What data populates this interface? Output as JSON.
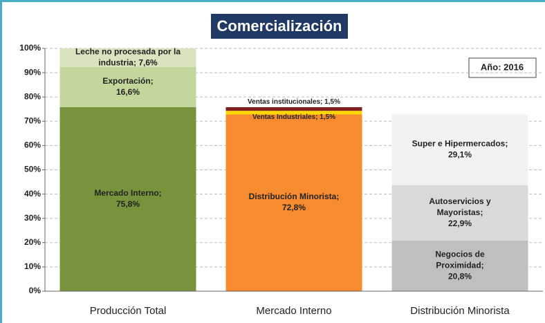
{
  "chart_data": {
    "type": "stacked_bar",
    "title": "Comercialización",
    "annotation": "Año: 2016",
    "categories": [
      "Producción Total",
      "Mercado Interno",
      "Distribución Minorista"
    ],
    "ylim": [
      0,
      100
    ],
    "yticks": [
      {
        "value": 0,
        "label": "0%"
      },
      {
        "value": 10,
        "label": "10%"
      },
      {
        "value": 20,
        "label": "20%"
      },
      {
        "value": 30,
        "label": "30%"
      },
      {
        "value": 40,
        "label": "40%"
      },
      {
        "value": 50,
        "label": "50%"
      },
      {
        "value": 60,
        "label": "60%"
      },
      {
        "value": 70,
        "label": "70%"
      },
      {
        "value": 80,
        "label": "80%"
      },
      {
        "value": 90,
        "label": "90%"
      },
      {
        "value": 100,
        "label": "100%"
      }
    ],
    "grid": true,
    "series": [
      {
        "color": "#77933c",
        "values": [
          75.8,
          null,
          null
        ],
        "value_labels": [
          "Mercado Interno;\n75,8%",
          null,
          null
        ]
      },
      {
        "color": "#c3d69b",
        "values": [
          16.6,
          null,
          null
        ],
        "value_labels": [
          "Exportación;\n16,6%",
          null,
          null
        ]
      },
      {
        "color": "#d7e4bd",
        "values": [
          7.6,
          null,
          null
        ],
        "value_labels": [
          "Leche no procesada por la\nindustria; 7,6%",
          null,
          null
        ]
      },
      {
        "color": "#f68b2f",
        "values": [
          null,
          72.8,
          null
        ],
        "value_labels": [
          null,
          "Distribución Minorista;\n72,8%",
          null
        ]
      },
      {
        "color": "#ffd700",
        "values": [
          null,
          1.5,
          null
        ],
        "value_labels": [
          null,
          "Ventas Industriales; 1,5%",
          null
        ]
      },
      {
        "color": "#7f1f1f",
        "values": [
          null,
          1.5,
          null
        ],
        "value_labels": [
          null,
          "Ventas institucionales; 1,5%",
          null
        ]
      },
      {
        "color": "#bfbfbf",
        "values": [
          null,
          null,
          20.8
        ],
        "value_labels": [
          null,
          null,
          "Negocios de\nProximidad;\n20,8%"
        ]
      },
      {
        "color": "#d9d9d9",
        "values": [
          null,
          null,
          22.9
        ],
        "value_labels": [
          null,
          null,
          "Autoservicios y\nMayoristas;\n22,9%"
        ]
      },
      {
        "color": "#f2f2f2",
        "values": [
          null,
          null,
          29.1
        ],
        "value_labels": [
          null,
          null,
          "Super e Hipermercados;\n29,1%"
        ]
      }
    ]
  }
}
